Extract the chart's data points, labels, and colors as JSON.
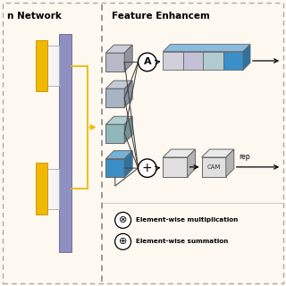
{
  "bg_color": "#fdf8f0",
  "title_right": "Feature Enhancem",
  "title_left": "n Network",
  "legend_items": [
    {
      "symbol": "⊗",
      "label": "Element-wise multiplication"
    },
    {
      "symbol": "⊕",
      "label": "Element-wise summation"
    }
  ],
  "cube_gray1": "#b8b8c8",
  "cube_gray2": "#a8b4c4",
  "cube_teal": "#90b8bc",
  "cube_blue": "#3a8fc8",
  "long_box_colors": [
    "#d0d0dc",
    "#c4c0d8",
    "#b0ccd0",
    "#3a8fc8"
  ],
  "cam_box_color": "#e0e0e0",
  "purple_bar": "#9090c0",
  "yellow_bar": "#f0b800",
  "white_rect": "#f5f5f5",
  "div_color": "#888888",
  "arrow_color": "#f0b800",
  "line_color": "#444444"
}
